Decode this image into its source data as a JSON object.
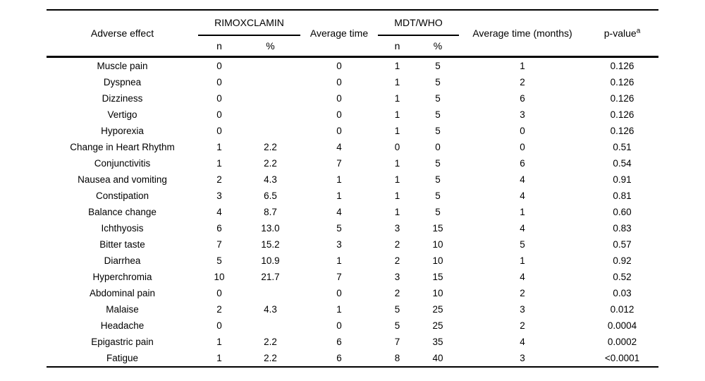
{
  "table": {
    "columns": {
      "effect": "Adverse effect",
      "group1": "RIMOXCLAMIN",
      "avg_time": "Average time",
      "group2": "MDT/WHO",
      "avg_time_months": "Average time (months)",
      "p_value": "p-value",
      "p_value_sup": "a",
      "sub_n": "n",
      "sub_pct": "%"
    },
    "rows": [
      [
        "Muscle pain",
        "0",
        "",
        "0",
        "1",
        "5",
        "1",
        "0.126"
      ],
      [
        "Dyspnea",
        "0",
        "",
        "0",
        "1",
        "5",
        "2",
        "0.126"
      ],
      [
        "Dizziness",
        "0",
        "",
        "0",
        "1",
        "5",
        "6",
        "0.126"
      ],
      [
        "Vertigo",
        "0",
        "",
        "0",
        "1",
        "5",
        "3",
        "0.126"
      ],
      [
        "Hyporexia",
        "0",
        "",
        "0",
        "1",
        "5",
        "0",
        "0.126"
      ],
      [
        "Change in Heart Rhythm",
        "1",
        "2.2",
        "4",
        "0",
        "0",
        "0",
        "0.51"
      ],
      [
        "Conjunctivitis",
        "1",
        "2.2",
        "7",
        "1",
        "5",
        "6",
        "0.54"
      ],
      [
        "Nausea and vomiting",
        "2",
        "4.3",
        "1",
        "1",
        "5",
        "4",
        "0.91"
      ],
      [
        "Constipation",
        "3",
        "6.5",
        "1",
        "1",
        "5",
        "4",
        "0.81"
      ],
      [
        "Balance change",
        "4",
        "8.7",
        "4",
        "1",
        "5",
        "1",
        "0.60"
      ],
      [
        "Ichthyosis",
        "6",
        "13.0",
        "5",
        "3",
        "15",
        "4",
        "0.83"
      ],
      [
        "Bitter taste",
        "7",
        "15.2",
        "3",
        "2",
        "10",
        "5",
        "0.57"
      ],
      [
        "Diarrhea",
        "5",
        "10.9",
        "1",
        "2",
        "10",
        "1",
        "0.92"
      ],
      [
        "Hyperchromia",
        "10",
        "21.7",
        "7",
        "3",
        "15",
        "4",
        "0.52"
      ],
      [
        "Abdominal pain",
        "0",
        "",
        "0",
        "2",
        "10",
        "2",
        "0.03"
      ],
      [
        "Malaise",
        "2",
        "4.3",
        "1",
        "5",
        "25",
        "3",
        "0.012"
      ],
      [
        "Headache",
        "0",
        "",
        "0",
        "5",
        "25",
        "2",
        "0.0004"
      ],
      [
        "Epigastric pain",
        "1",
        "2.2",
        "6",
        "7",
        "35",
        "4",
        "0.0002"
      ],
      [
        "Fatigue",
        "1",
        "2.2",
        "6",
        "8",
        "40",
        "3",
        "<0.0001"
      ]
    ],
    "colors": {
      "text": "#000000",
      "background": "#ffffff",
      "rule": "#000000"
    }
  }
}
